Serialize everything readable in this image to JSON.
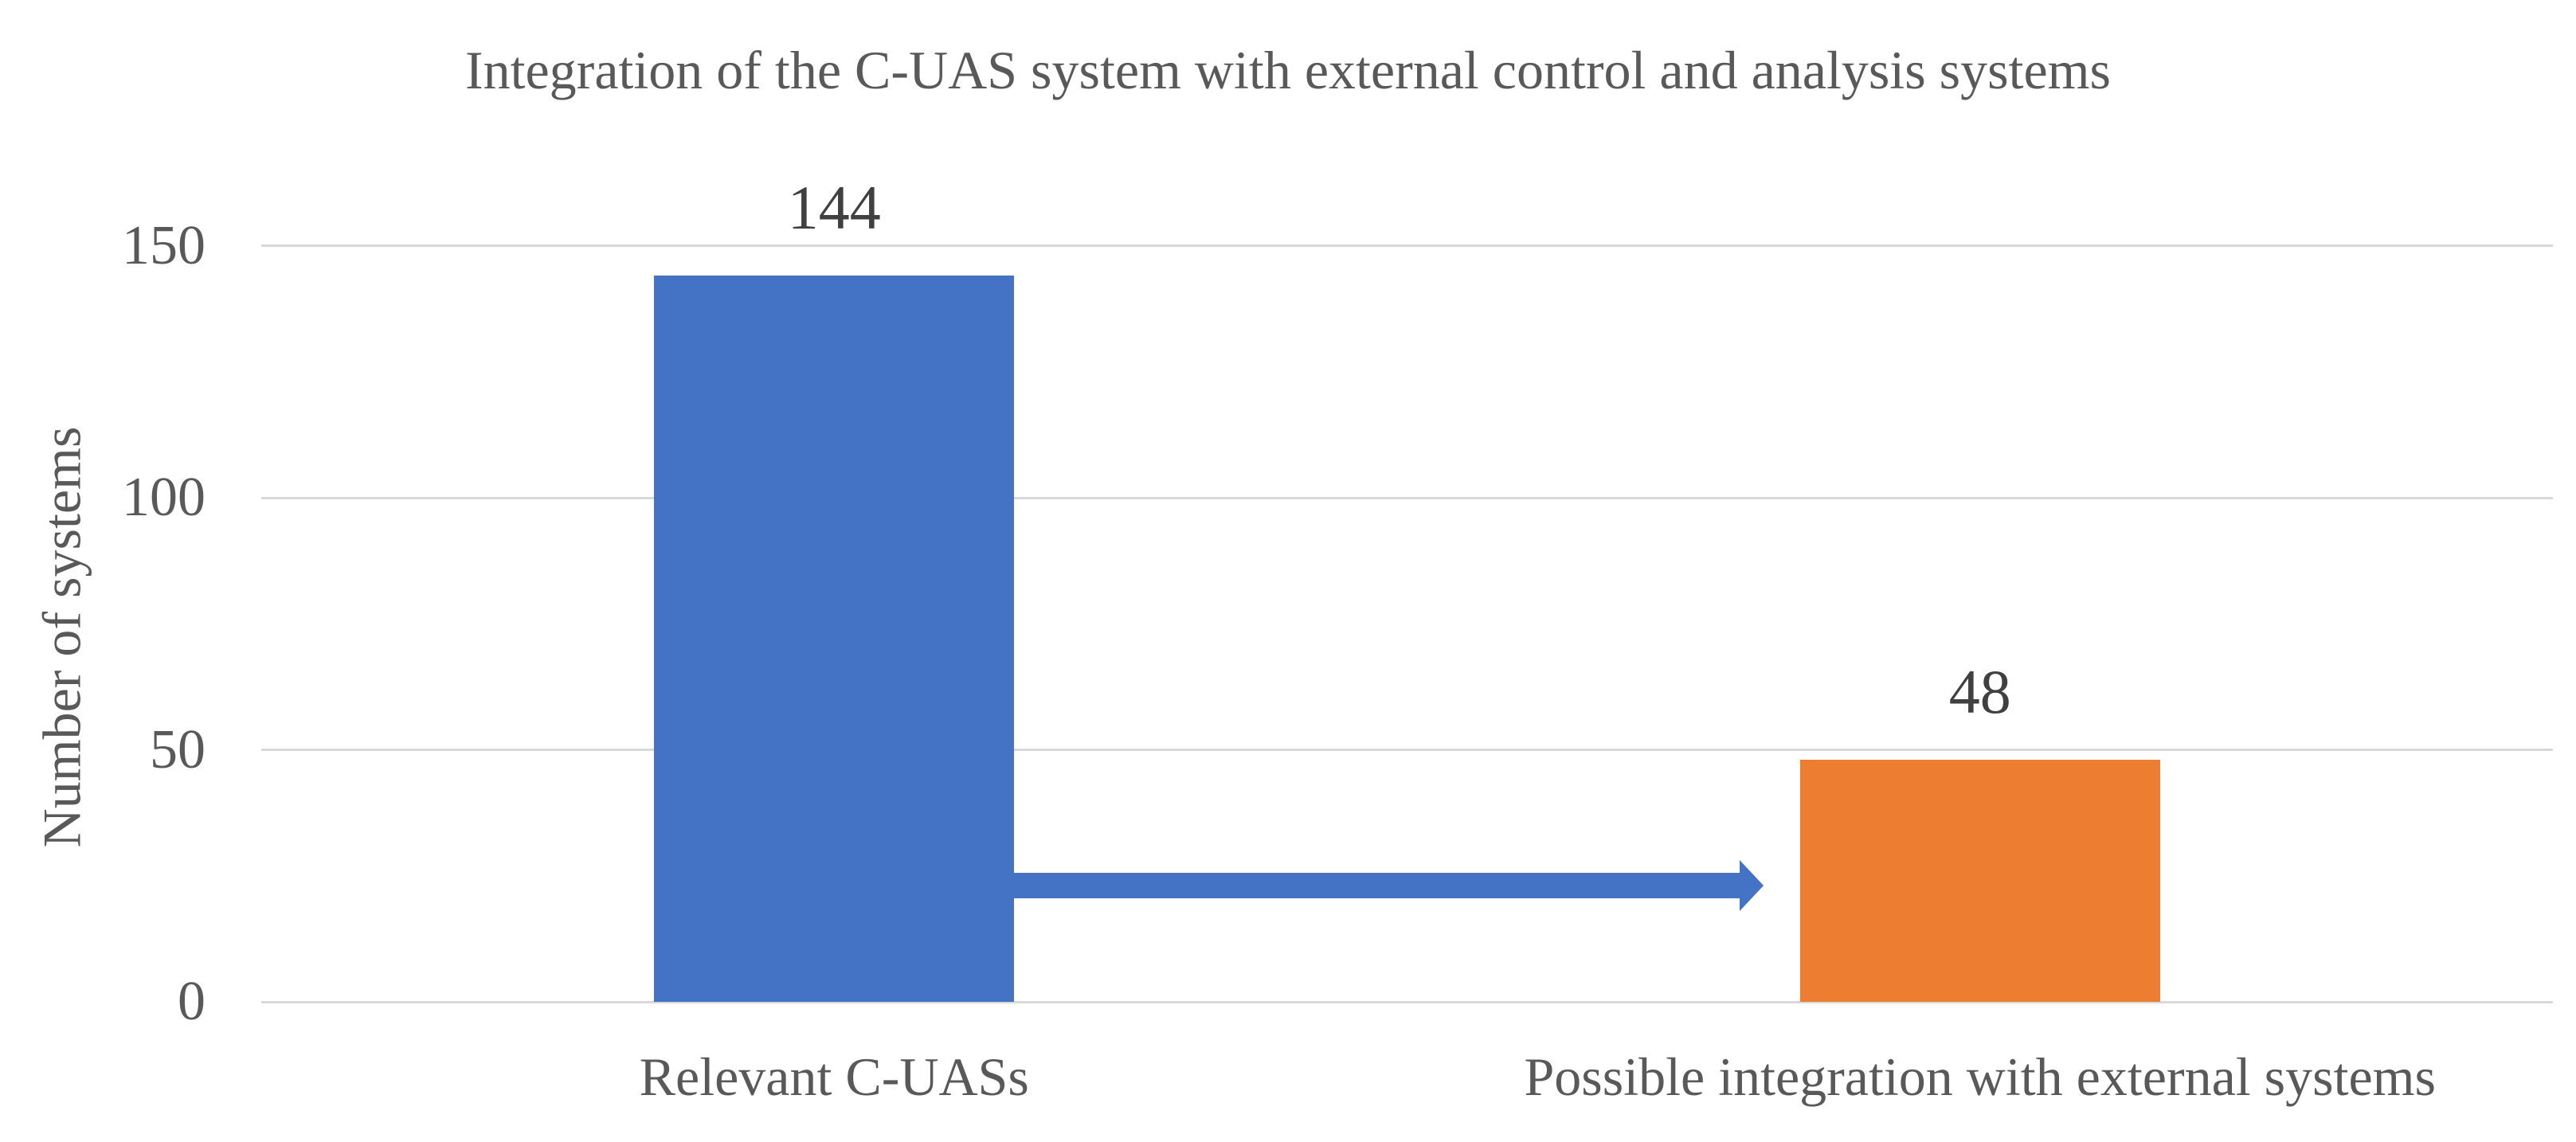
{
  "chart_data": {
    "type": "bar",
    "title": "Integration of the C-UAS system with external control and analysis systems",
    "categories": [
      "Relevant C-UASs",
      "Possible integration with external systems"
    ],
    "values": [
      144,
      48
    ],
    "data_labels": [
      "144",
      "48"
    ],
    "bar_colors": [
      "#4472C4",
      "#ED7D31"
    ],
    "xlabel": "",
    "ylabel": "Number of systems",
    "ylim": [
      0,
      150
    ],
    "yticks": [
      0,
      50,
      100,
      150
    ],
    "legend": "none",
    "grid": "horizontal",
    "gridline_color": "#D9D9D9",
    "axis_text_color": "#595959",
    "data_label_color": "#404040",
    "background_color": "#FFFFFF",
    "annotations": [
      {
        "type": "arrow",
        "from_category": "Relevant C-UASs",
        "to_category": "Possible integration with external systems",
        "at_value": 23,
        "color": "#4472C4"
      }
    ]
  }
}
